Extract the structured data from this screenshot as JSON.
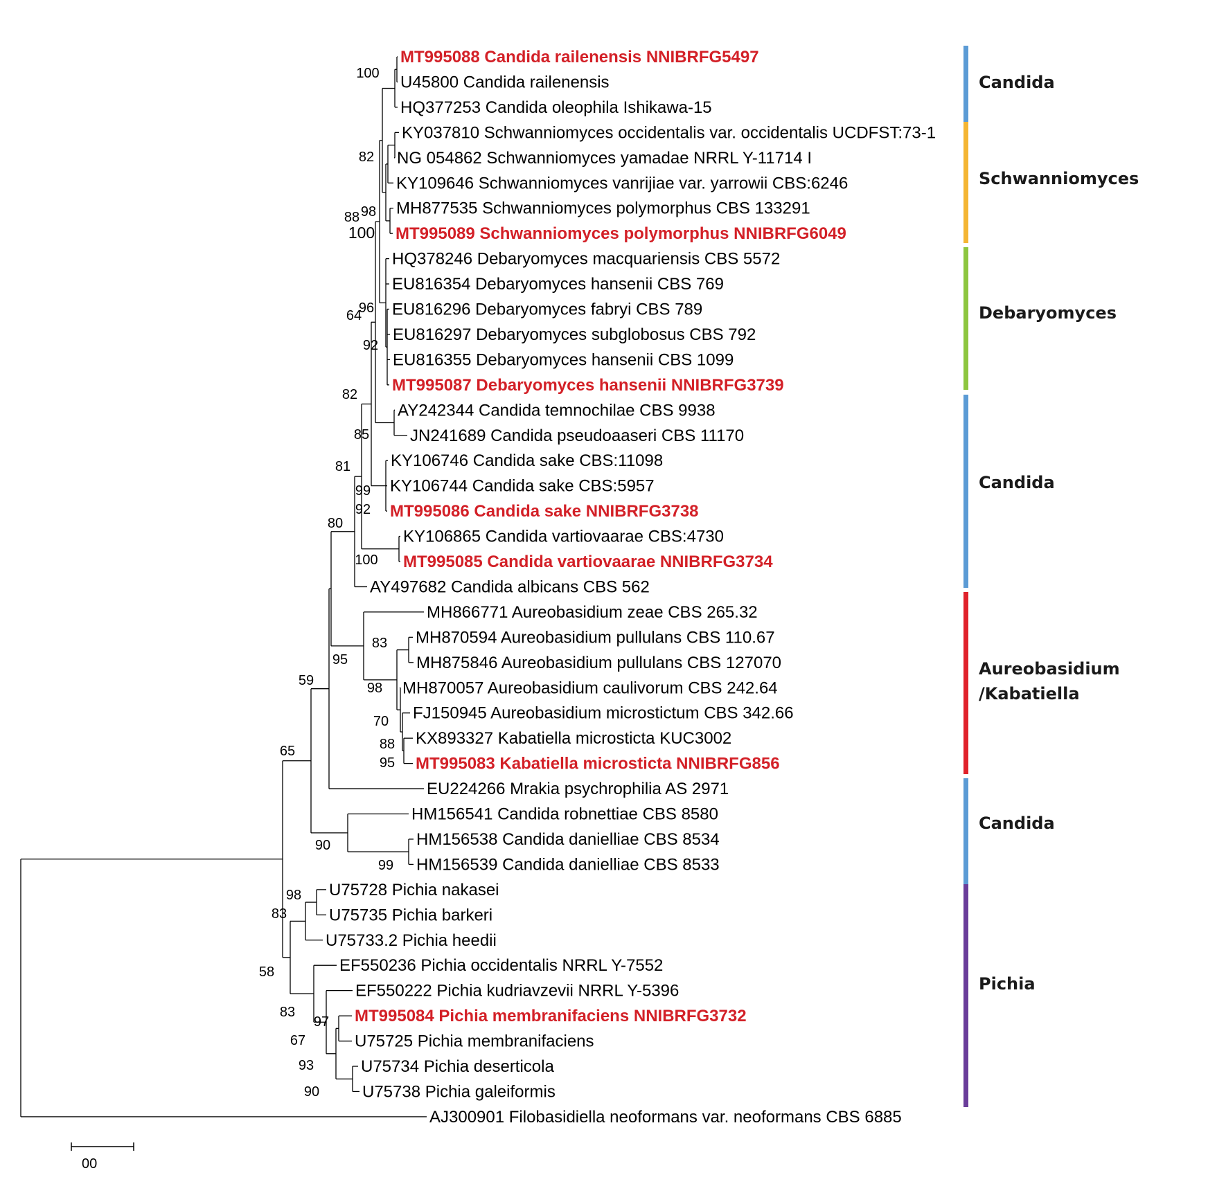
{
  "taxa": [
    {
      "label": "MT995088 Candida railenensis NNIBRFG5497",
      "highlight": true
    },
    {
      "label": "U45800 Candida railenensis",
      "highlight": false
    },
    {
      "label": "HQ377253 Candida oleophila Ishikawa-15",
      "highlight": false
    },
    {
      "label": "KY037810 Schwanniomyces occidentalis var. occidentalis UCDFST:73-1",
      "highlight": false
    },
    {
      "label": "NG 054862 Schwanniomyces yamadae NRRL Y-11714 I",
      "highlight": false
    },
    {
      "label": "KY109646 Schwanniomyces vanrijiae var. yarrowii CBS:6246",
      "highlight": false
    },
    {
      "label": "MH877535 Schwanniomyces polymorphus CBS 133291",
      "highlight": false
    },
    {
      "label": "MT995089 Schwanniomyces polymorphus NNIBRFG6049",
      "highlight": true
    },
    {
      "label": "HQ378246 Debaryomyces macquariensis CBS 5572",
      "highlight": false
    },
    {
      "label": "EU816354 Debaryomyces hansenii CBS 769",
      "highlight": false
    },
    {
      "label": "EU816296 Debaryomyces fabryi CBS 789",
      "highlight": false
    },
    {
      "label": "EU816297 Debaryomyces subglobosus CBS 792",
      "highlight": false
    },
    {
      "label": "EU816355 Debaryomyces hansenii CBS 1099",
      "highlight": false
    },
    {
      "label": "MT995087 Debaryomyces hansenii NNIBRFG3739",
      "highlight": true
    },
    {
      "label": "AY242344 Candida temnochilae CBS 9938",
      "highlight": false
    },
    {
      "label": "JN241689 Candida pseudoaaseri CBS 11170",
      "highlight": false
    },
    {
      "label": "KY106746 Candida sake CBS:11098",
      "highlight": false
    },
    {
      "label": "KY106744 Candida sake CBS:5957",
      "highlight": false
    },
    {
      "label": "MT995086 Candida sake NNIBRFG3738",
      "highlight": true
    },
    {
      "label": "KY106865 Candida vartiovaarae CBS:4730",
      "highlight": false
    },
    {
      "label": "MT995085 Candida vartiovaarae NNIBRFG3734",
      "highlight": true
    },
    {
      "label": "AY497682 Candida albicans CBS 562",
      "highlight": false
    },
    {
      "label": "MH866771 Aureobasidium zeae CBS 265.32",
      "highlight": false
    },
    {
      "label": "MH870594 Aureobasidium pullulans CBS 110.67",
      "highlight": false
    },
    {
      "label": "MH875846 Aureobasidium pullulans CBS 127070",
      "highlight": false
    },
    {
      "label": "MH870057 Aureobasidium caulivorum CBS 242.64",
      "highlight": false
    },
    {
      "label": "FJ150945 Aureobasidium microstictum CBS 342.66",
      "highlight": false
    },
    {
      "label": "KX893327 Kabatiella microsticta KUC3002",
      "highlight": false
    },
    {
      "label": "MT995083 Kabatiella microsticta NNIBRFG856",
      "highlight": true
    },
    {
      "label": "EU224266 Mrakia psychrophilia AS 2971",
      "highlight": false
    },
    {
      "label": "HM156541 Candida robnettiae CBS 8580",
      "highlight": false
    },
    {
      "label": "HM156538 Candida danielliae CBS 8534",
      "highlight": false
    },
    {
      "label": "HM156539 Candida danielliae CBS 8533",
      "highlight": false
    },
    {
      "label": "U75728 Pichia nakasei",
      "highlight": false
    },
    {
      "label": "U75735 Pichia barkeri",
      "highlight": false
    },
    {
      "label": "U75733.2 Pichia heedii",
      "highlight": false
    },
    {
      "label": "EF550236 Pichia occidentalis NRRL Y-7552",
      "highlight": false
    },
    {
      "label": "EF550222 Pichia kudriavzevii NRRL Y-5396",
      "highlight": false
    },
    {
      "label": "MT995084 Pichia membranifaciens NNIBRFG3732",
      "highlight": true
    },
    {
      "label": "U75725 Pichia membranifaciens",
      "highlight": false
    },
    {
      "label": "U75734 Pichia deserticola",
      "highlight": false
    },
    {
      "label": "U75738 Pichia galeiformis",
      "highlight": false
    },
    {
      "label": "AJ300901 Filobasidiella neoformans var. neoformans CBS 6885",
      "highlight": false
    }
  ],
  "bootstrap": [
    "100",
    "82",
    "88",
    "98",
    "100",
    "64",
    "96",
    "92",
    "82",
    "85",
    "81",
    "99",
    "92",
    "80",
    "100",
    "95",
    "83",
    "98",
    "70",
    "88",
    "95",
    "59",
    "65",
    "90",
    "99",
    "98",
    "83",
    "58",
    "83",
    "97",
    "67",
    "93",
    "90"
  ],
  "clades": [
    {
      "name": "Candida",
      "color": "#5b9bd5"
    },
    {
      "name": "Schwanniomyces",
      "color": "#f4b533"
    },
    {
      "name": "Debaryomyces",
      "color": "#8dc63f"
    },
    {
      "name": "Candida",
      "color": "#5b9bd5"
    },
    {
      "name": "Aureobasidium",
      "color": "#e0222b"
    },
    {
      "name": "Candida",
      "color": "#5b9bd5"
    },
    {
      "name": "Pichia",
      "color": "#6a3d9a"
    }
  ],
  "clade_label_line2": "/Kabatiella",
  "scale_bar": {
    "label": "00"
  },
  "colors": {
    "highlight": "#d32027",
    "branch": "#000000"
  }
}
